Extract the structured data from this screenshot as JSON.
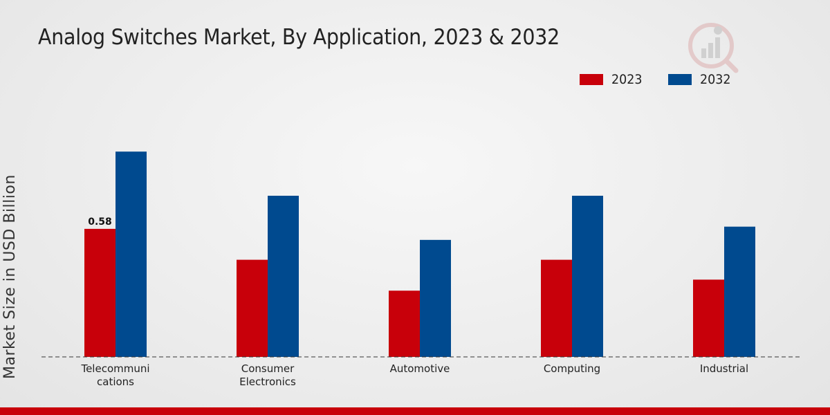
{
  "chart_data": {
    "type": "bar",
    "title": "Analog Switches Market, By Application, 2023 & 2032",
    "ylabel": "Market Size in USD Billion",
    "xlabel": "",
    "categories": [
      "Telecommuni\ncations",
      "Consumer\nElectronics",
      "Automotive",
      "Computing",
      "Industrial"
    ],
    "series": [
      {
        "name": "2023",
        "color": "#c8000a",
        "values": [
          0.58,
          0.44,
          0.3,
          0.44,
          0.35
        ]
      },
      {
        "name": "2032",
        "color": "#004a8f",
        "values": [
          0.93,
          0.73,
          0.53,
          0.73,
          0.59
        ]
      }
    ],
    "data_labels": [
      {
        "series": 0,
        "category": 0,
        "text": "0.58"
      }
    ],
    "ylim": [
      0,
      1.2
    ],
    "grid": false,
    "legend": "top-right"
  },
  "logo": {
    "icon": "market-research-logo-icon"
  }
}
